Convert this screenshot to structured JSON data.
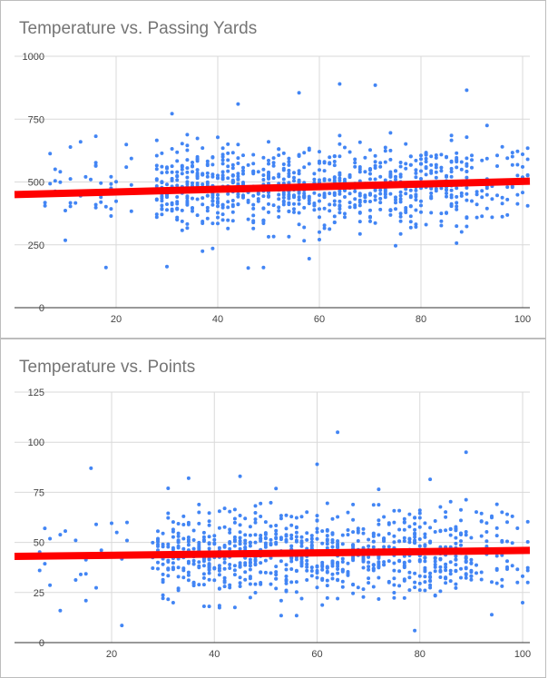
{
  "chart_data": [
    {
      "type": "scatter",
      "title": "Temperature vs. Passing Yards",
      "xlabel": "",
      "ylabel": "",
      "xlim": [
        6,
        101
      ],
      "ylim": [
        0,
        1000
      ],
      "x_ticks": [
        20,
        40,
        60,
        80,
        100
      ],
      "y_ticks": [
        0,
        250,
        500,
        750,
        1000
      ],
      "grid": true,
      "legend": "none",
      "point_color": "#4285f4",
      "trendline": {
        "color": "#ff0000",
        "x": [
          6,
          101
        ],
        "y": [
          450,
          503
        ]
      },
      "points_summary": {
        "approx_count": 900,
        "x_range": [
          6,
          101
        ],
        "y_range": [
          160,
          890
        ],
        "y_mean": 480
      },
      "notable_points": [
        {
          "x": 6,
          "y": 405
        },
        {
          "x": 7,
          "y": 613
        },
        {
          "x": 10,
          "y": 268
        },
        {
          "x": 13,
          "y": 660
        },
        {
          "x": 15,
          "y": 510
        },
        {
          "x": 16,
          "y": 682
        },
        {
          "x": 30,
          "y": 163
        },
        {
          "x": 44,
          "y": 810
        },
        {
          "x": 46,
          "y": 158
        },
        {
          "x": 56,
          "y": 855
        },
        {
          "x": 58,
          "y": 195
        },
        {
          "x": 64,
          "y": 890
        },
        {
          "x": 71,
          "y": 885
        },
        {
          "x": 89,
          "y": 865
        },
        {
          "x": 93,
          "y": 725
        },
        {
          "x": 96,
          "y": 640
        },
        {
          "x": 99,
          "y": 413
        },
        {
          "x": 100,
          "y": 560
        },
        {
          "x": 101,
          "y": 405
        }
      ]
    },
    {
      "type": "scatter",
      "title": "Temperature vs. Points",
      "xlabel": "",
      "ylabel": "",
      "xlim": [
        6,
        101
      ],
      "ylim": [
        0,
        125
      ],
      "x_ticks": [
        20,
        40,
        60,
        80,
        100
      ],
      "y_ticks": [
        0,
        25,
        50,
        75,
        100,
        125
      ],
      "grid": true,
      "legend": "none",
      "point_color": "#4285f4",
      "trendline": {
        "color": "#ff0000",
        "x": [
          6,
          101
        ],
        "y": [
          43,
          46
        ]
      },
      "points_summary": {
        "approx_count": 900,
        "x_range": [
          6,
          101
        ],
        "y_range": [
          6,
          105
        ],
        "y_mean": 44
      },
      "notable_points": [
        {
          "x": 6,
          "y": 36
        },
        {
          "x": 7,
          "y": 57
        },
        {
          "x": 10,
          "y": 16
        },
        {
          "x": 13,
          "y": 51
        },
        {
          "x": 14,
          "y": 34
        },
        {
          "x": 16,
          "y": 87
        },
        {
          "x": 17,
          "y": 59
        },
        {
          "x": 31,
          "y": 77
        },
        {
          "x": 35,
          "y": 82
        },
        {
          "x": 45,
          "y": 83
        },
        {
          "x": 60,
          "y": 89
        },
        {
          "x": 64,
          "y": 105
        },
        {
          "x": 79,
          "y": 6
        },
        {
          "x": 89,
          "y": 95
        },
        {
          "x": 95,
          "y": 69
        },
        {
          "x": 99,
          "y": 30
        },
        {
          "x": 101,
          "y": 30
        }
      ]
    }
  ]
}
